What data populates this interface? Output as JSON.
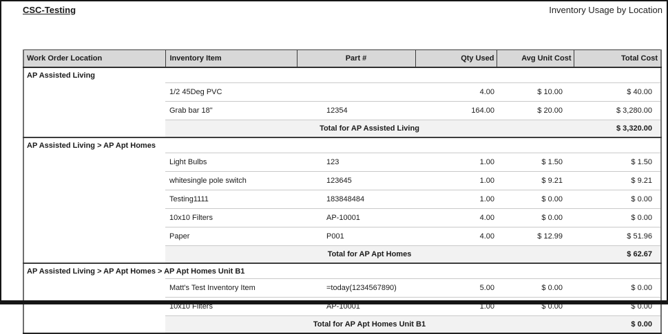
{
  "page": {
    "company": "CSC-Testing",
    "report_title": "Inventory Usage by Location"
  },
  "colors": {
    "header_bg": "#d8d8d8",
    "total_row_bg": "#f2f2f2",
    "grid_line": "#c9c9c9",
    "section_line": "#3c3c3c"
  },
  "table": {
    "columns": [
      "Work Order Location",
      "Inventory Item",
      "Part #",
      "Qty Used",
      "Avg Unit Cost",
      "Total Cost"
    ],
    "sections": [
      {
        "location": "AP Assisted Living",
        "rows": [
          {
            "item": "1/2 45Deg PVC",
            "part": "",
            "qty": "4.00",
            "avg_unit_cost": "$ 10.00",
            "total_cost": "$ 40.00"
          },
          {
            "item": "Grab bar 18\"",
            "part": "12354",
            "qty": "164.00",
            "avg_unit_cost": "$ 20.00",
            "total_cost": "$ 3,280.00"
          }
        ],
        "total_label": "Total for AP Assisted Living",
        "total_cost": "$ 3,320.00"
      },
      {
        "location": "AP Assisted Living > AP Apt Homes",
        "rows": [
          {
            "item": "Light Bulbs",
            "part": "123",
            "qty": "1.00",
            "avg_unit_cost": "$ 1.50",
            "total_cost": "$ 1.50"
          },
          {
            "item": "whitesingle pole switch",
            "part": "123645",
            "qty": "1.00",
            "avg_unit_cost": "$ 9.21",
            "total_cost": "$ 9.21"
          },
          {
            "item": "Testing1111",
            "part": "183848484",
            "qty": "1.00",
            "avg_unit_cost": "$ 0.00",
            "total_cost": "$ 0.00"
          },
          {
            "item": "10x10 Filters",
            "part": "AP-10001",
            "qty": "4.00",
            "avg_unit_cost": "$ 0.00",
            "total_cost": "$ 0.00"
          },
          {
            "item": "Paper",
            "part": "P001",
            "qty": "4.00",
            "avg_unit_cost": "$ 12.99",
            "total_cost": "$ 51.96"
          }
        ],
        "total_label": "Total for AP Apt Homes",
        "total_cost": "$ 62.67"
      },
      {
        "location": "AP Assisted Living > AP Apt Homes > AP Apt Homes Unit B1",
        "rows": [
          {
            "item": "Matt's Test Inventory Item",
            "part": "=today(1234567890)",
            "qty": "5.00",
            "avg_unit_cost": "$ 0.00",
            "total_cost": "$ 0.00"
          },
          {
            "item": "10x10 Filters",
            "part": "AP-10001",
            "qty": "1.00",
            "avg_unit_cost": "$ 0.00",
            "total_cost": "$ 0.00"
          }
        ],
        "total_label": "Total for AP Apt Homes Unit B1",
        "total_cost": "$ 0.00"
      }
    ]
  }
}
